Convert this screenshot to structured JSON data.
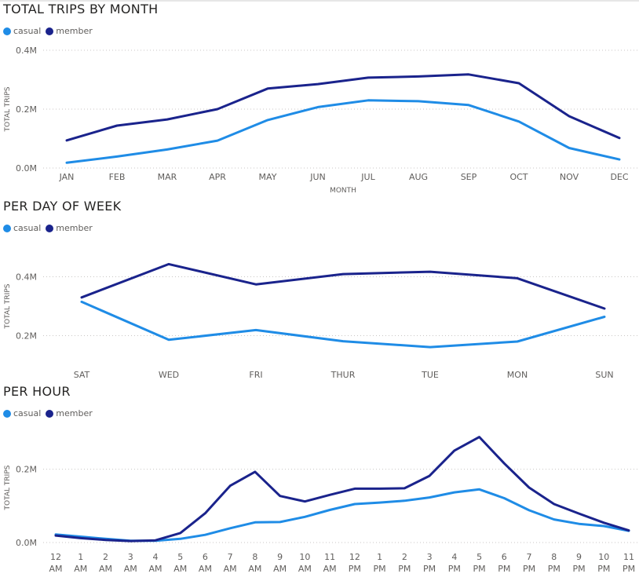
{
  "colors": {
    "casual": "#1f8ce6",
    "member": "#1a238c",
    "grid": "#c8c6c4",
    "text": "#605e5c"
  },
  "legend": {
    "casual": "casual",
    "member": "member"
  },
  "chart_data": [
    {
      "type": "line",
      "title": "TOTAL TRIPS BY MONTH",
      "xlabel": "MONTH",
      "ylabel": "TOTAL TRIPS",
      "categories": [
        "JAN",
        "FEB",
        "MAR",
        "APR",
        "MAY",
        "JUN",
        "JUL",
        "AUG",
        "SEP",
        "OCT",
        "NOV",
        "DEC"
      ],
      "yticks": [
        0,
        200000,
        400000
      ],
      "ytick_labels": [
        "0.0M",
        "0.2M",
        "0.4M"
      ],
      "ylim": [
        0,
        400000
      ],
      "grid": true,
      "legend": "top-left",
      "series": [
        {
          "name": "casual",
          "values": [
            18000,
            39000,
            63000,
            93000,
            163000,
            207000,
            230000,
            227000,
            214000,
            158000,
            68000,
            29000
          ]
        },
        {
          "name": "member",
          "values": [
            94000,
            144000,
            165000,
            200000,
            270000,
            285000,
            307000,
            311000,
            318000,
            288000,
            176000,
            102000
          ]
        }
      ]
    },
    {
      "type": "line",
      "title": "PER DAY OF WEEK",
      "xlabel": "",
      "ylabel": "TOTAL TRIPS",
      "categories": [
        "SAT",
        "WED",
        "FRI",
        "THUR",
        "TUE",
        "MON",
        "SUN"
      ],
      "yticks": [
        200000,
        400000
      ],
      "ytick_labels": [
        "0.2M",
        "0.4M"
      ],
      "ylim": [
        100000,
        500000
      ],
      "grid": true,
      "legend": "top-left",
      "series": [
        {
          "name": "casual",
          "values": [
            315000,
            186000,
            219000,
            181000,
            161000,
            180000,
            264000
          ]
        },
        {
          "name": "member",
          "values": [
            330000,
            443000,
            374000,
            409000,
            417000,
            395000,
            292000
          ]
        }
      ]
    },
    {
      "type": "line",
      "title": "PER HOUR",
      "xlabel": "",
      "ylabel": "TOTAL TRIPS",
      "categories": [
        "12 AM",
        "1 AM",
        "2 AM",
        "3 AM",
        "4 AM",
        "5 AM",
        "6 AM",
        "7 AM",
        "8 AM",
        "9 AM",
        "10 AM",
        "11 AM",
        "12 PM",
        "1 PM",
        "2 PM",
        "3 PM",
        "4 PM",
        "5 PM",
        "6 PM",
        "7 PM",
        "8 PM",
        "9 PM",
        "10 PM",
        "11 PM"
      ],
      "yticks": [
        0,
        200000
      ],
      "ytick_labels": [
        "0.0M",
        "0.2M"
      ],
      "ylim": [
        0,
        300000
      ],
      "grid": true,
      "legend": "top-left",
      "series": [
        {
          "name": "casual",
          "values": [
            22000,
            16000,
            10000,
            5000,
            5000,
            10000,
            21000,
            39000,
            55000,
            56000,
            70000,
            89000,
            105000,
            109000,
            114000,
            123000,
            137000,
            145000,
            121000,
            88000,
            63000,
            51000,
            45000,
            32000
          ]
        },
        {
          "name": "member",
          "values": [
            19000,
            12000,
            7000,
            4000,
            6000,
            26000,
            80000,
            155000,
            193000,
            127000,
            112000,
            130000,
            147000,
            147000,
            148000,
            182000,
            251000,
            288000,
            216000,
            150000,
            105000,
            79000,
            54000,
            33000
          ]
        }
      ]
    }
  ]
}
